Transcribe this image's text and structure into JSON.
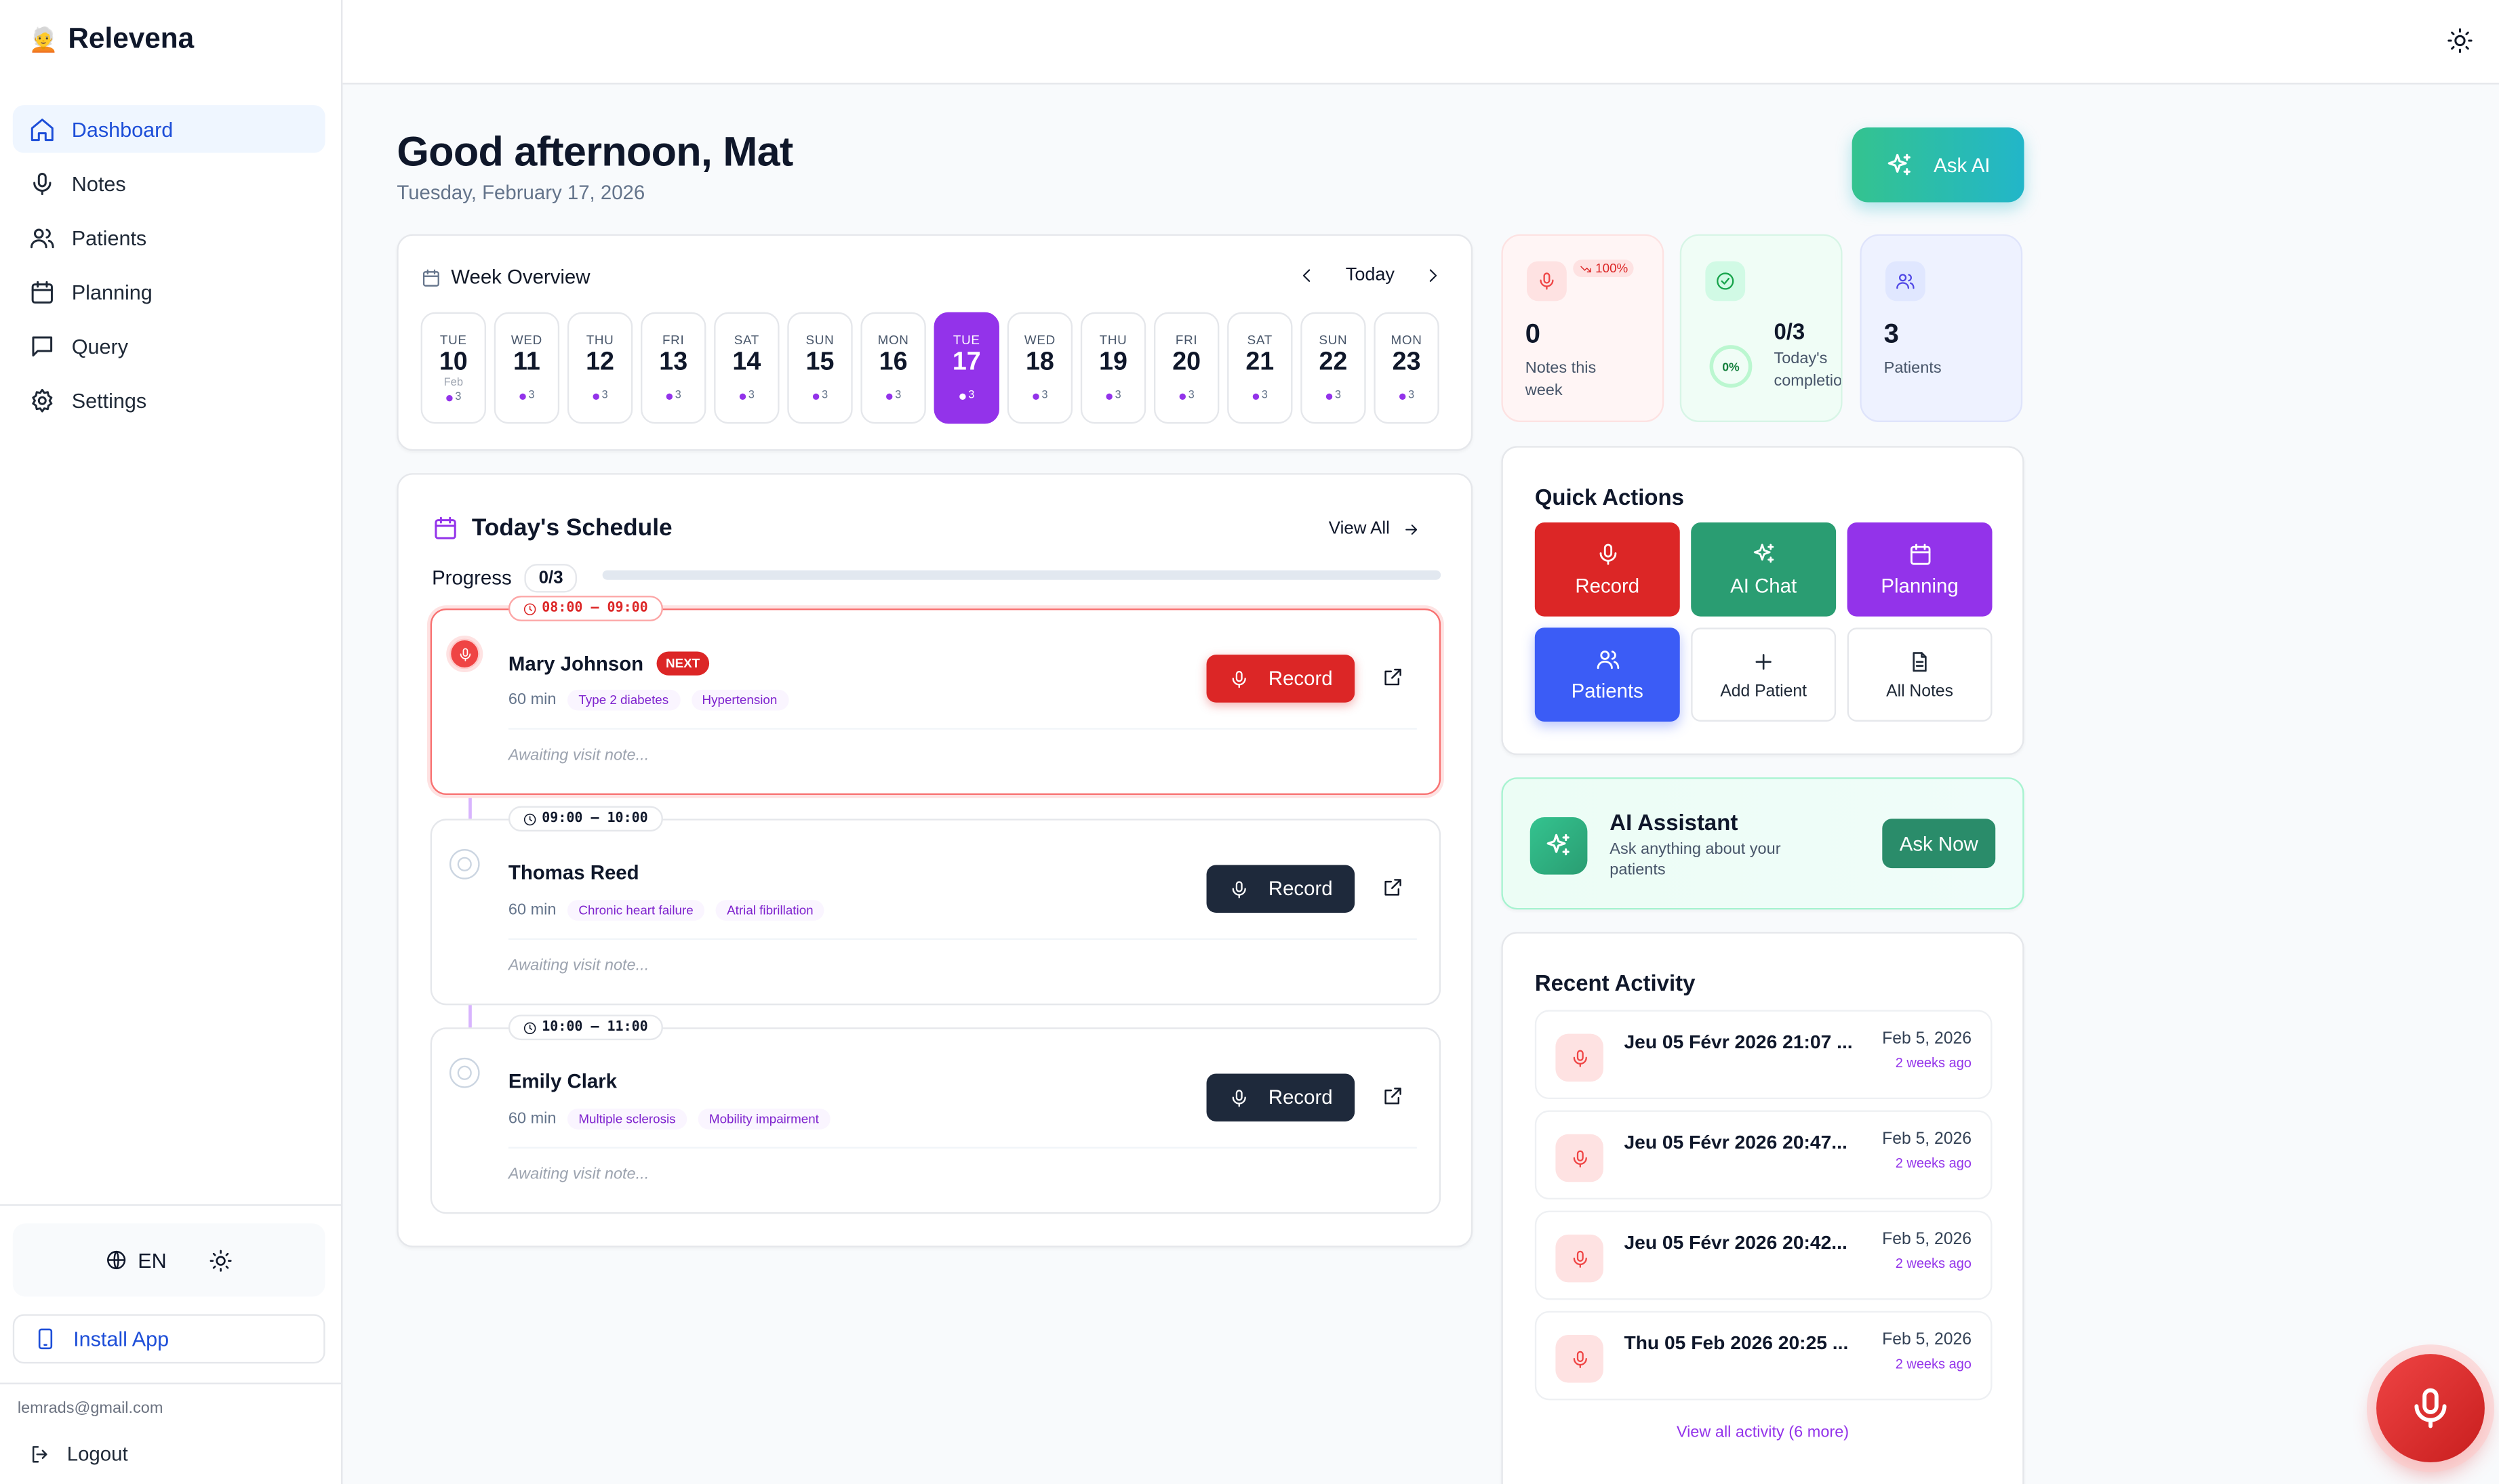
{
  "app": {
    "brand": "Relevena",
    "brand_emoji": "🧑‍🦳"
  },
  "sidebar": {
    "items": [
      {
        "label": "Dashboard",
        "icon": "home-icon",
        "active": true
      },
      {
        "label": "Notes",
        "icon": "microphone-icon"
      },
      {
        "label": "Patients",
        "icon": "users-icon"
      },
      {
        "label": "Planning",
        "icon": "calendar-icon"
      },
      {
        "label": "Query",
        "icon": "message-square-icon"
      },
      {
        "label": "Settings",
        "icon": "gear-icon"
      }
    ],
    "language": "EN",
    "install_label": "Install App",
    "email": "lemrads@gmail.com",
    "logout_label": "Logout"
  },
  "header": {
    "greeting": "Good afternoon, Mat",
    "date": "Tuesday, February 17, 2026",
    "ask_ai_label": "Ask AI"
  },
  "week": {
    "title": "Week Overview",
    "today_label": "Today",
    "days": [
      {
        "dow": "TUE",
        "num": "10",
        "month": "Feb",
        "count": "3"
      },
      {
        "dow": "WED",
        "num": "11",
        "count": "3"
      },
      {
        "dow": "THU",
        "num": "12",
        "count": "3"
      },
      {
        "dow": "FRI",
        "num": "13",
        "count": "3"
      },
      {
        "dow": "SAT",
        "num": "14",
        "count": "3"
      },
      {
        "dow": "SUN",
        "num": "15",
        "count": "3"
      },
      {
        "dow": "MON",
        "num": "16",
        "count": "3"
      },
      {
        "dow": "TUE",
        "num": "17",
        "count": "3",
        "selected": true
      },
      {
        "dow": "WED",
        "num": "18",
        "count": "3"
      },
      {
        "dow": "THU",
        "num": "19",
        "count": "3"
      },
      {
        "dow": "FRI",
        "num": "20",
        "count": "3"
      },
      {
        "dow": "SAT",
        "num": "21",
        "count": "3"
      },
      {
        "dow": "SUN",
        "num": "22",
        "count": "3"
      },
      {
        "dow": "MON",
        "num": "23",
        "count": "3"
      }
    ]
  },
  "schedule": {
    "title": "Today's Schedule",
    "view_all_label": "View All",
    "progress_label": "Progress",
    "progress_value": "0/3",
    "progress_fraction": 0,
    "appointments": [
      {
        "time": "08:00 – 09:00",
        "name": "Mary Johnson",
        "badge": "NEXT",
        "duration": "60 min",
        "tags": [
          "Type 2 diabetes",
          "Hypertension"
        ],
        "note": "Awaiting visit note...",
        "record_label": "Record"
      },
      {
        "time": "09:00 – 10:00",
        "name": "Thomas Reed",
        "duration": "60 min",
        "tags": [
          "Chronic heart failure",
          "Atrial fibrillation"
        ],
        "note": "Awaiting visit note...",
        "record_label": "Record"
      },
      {
        "time": "10:00 – 11:00",
        "name": "Emily Clark",
        "duration": "60 min",
        "tags": [
          "Multiple sclerosis",
          "Mobility impairment"
        ],
        "note": "Awaiting visit note...",
        "record_label": "Record"
      }
    ]
  },
  "stats": {
    "notes": {
      "value": "0",
      "label": "Notes this week",
      "trend": "100%"
    },
    "completion": {
      "value": "0/3",
      "label": "Today's completion",
      "percent": "0%"
    },
    "patients": {
      "value": "3",
      "label": "Patients"
    }
  },
  "quick_actions": {
    "title": "Quick Actions",
    "buttons": [
      {
        "label": "Record",
        "icon": "microphone-icon",
        "color": "#dc2626"
      },
      {
        "label": "AI Chat",
        "icon": "sparkles-icon",
        "color": "#2a9d72"
      },
      {
        "label": "Planning",
        "icon": "calendar-icon",
        "color": "#9333ea"
      },
      {
        "label": "Patients",
        "icon": "users-icon",
        "color": "#3b5cf6"
      },
      {
        "label": "Add Patient",
        "icon": "plus-icon"
      },
      {
        "label": "All Notes",
        "icon": "file-text-icon"
      }
    ]
  },
  "ai_assistant": {
    "title": "AI Assistant",
    "subtitle": "Ask anything about your patients",
    "button": "Ask Now"
  },
  "recent": {
    "title": "Recent Activity",
    "items": [
      {
        "name": "Jeu 05 Févr 2026 21:07 ...",
        "date": "Feb 5, 2026",
        "ago": "2 weeks ago"
      },
      {
        "name": "Jeu 05 Févr 2026 20:47...",
        "date": "Feb 5, 2026",
        "ago": "2 weeks ago"
      },
      {
        "name": "Jeu 05 Févr 2026 20:42...",
        "date": "Feb 5, 2026",
        "ago": "2 weeks ago"
      },
      {
        "name": "Thu 05 Feb 2026 20:25 ...",
        "date": "Feb 5, 2026",
        "ago": "2 weeks ago"
      }
    ],
    "view_more": "View all activity (6 more)"
  }
}
